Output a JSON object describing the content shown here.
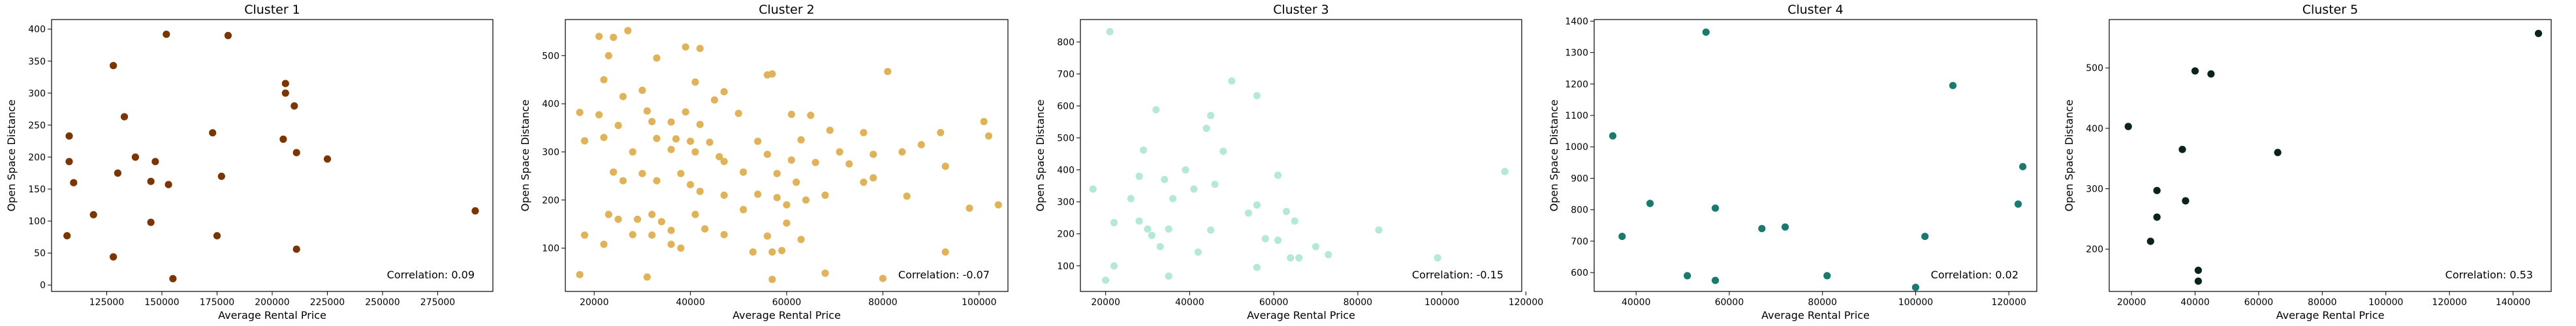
{
  "chart_data": [
    {
      "type": "scatter",
      "title": "Cluster 1",
      "xlabel": "Average Rental Price",
      "ylabel": "Open Space Distance",
      "xlim": [
        100000,
        300000
      ],
      "ylim": [
        -10,
        415
      ],
      "xticks": [
        125000,
        150000,
        175000,
        200000,
        225000,
        250000,
        275000
      ],
      "xtick_labels": [
        "125000",
        "150000",
        "175000",
        "200000",
        "225000",
        "250000",
        "275000"
      ],
      "yticks": [
        0,
        50,
        100,
        150,
        200,
        250,
        300,
        350,
        400
      ],
      "ytick_labels": [
        "0",
        "50",
        "100",
        "150",
        "200",
        "250",
        "300",
        "350",
        "400"
      ],
      "color": "#7a3500",
      "annotation": "Correlation: 0.09",
      "grid": false,
      "points": [
        {
          "x": 152000,
          "y": 392
        },
        {
          "x": 180000,
          "y": 390
        },
        {
          "x": 128000,
          "y": 343
        },
        {
          "x": 206000,
          "y": 315
        },
        {
          "x": 206000,
          "y": 300
        },
        {
          "x": 210000,
          "y": 280
        },
        {
          "x": 133000,
          "y": 263
        },
        {
          "x": 108000,
          "y": 233
        },
        {
          "x": 173000,
          "y": 238
        },
        {
          "x": 205000,
          "y": 228
        },
        {
          "x": 211000,
          "y": 207
        },
        {
          "x": 225000,
          "y": 197
        },
        {
          "x": 108000,
          "y": 193
        },
        {
          "x": 138000,
          "y": 200
        },
        {
          "x": 147000,
          "y": 193
        },
        {
          "x": 130000,
          "y": 175
        },
        {
          "x": 177000,
          "y": 170
        },
        {
          "x": 110000,
          "y": 160
        },
        {
          "x": 145000,
          "y": 162
        },
        {
          "x": 153000,
          "y": 157
        },
        {
          "x": 119000,
          "y": 110
        },
        {
          "x": 145000,
          "y": 98
        },
        {
          "x": 107000,
          "y": 77
        },
        {
          "x": 175000,
          "y": 77
        },
        {
          "x": 211000,
          "y": 56
        },
        {
          "x": 128000,
          "y": 44
        },
        {
          "x": 155000,
          "y": 10
        },
        {
          "x": 292000,
          "y": 116
        }
      ]
    },
    {
      "type": "scatter",
      "title": "Cluster 2",
      "xlabel": "Average Rental Price",
      "ylabel": "Open Space Distance",
      "xlim": [
        14000,
        106000
      ],
      "ylim": [
        10,
        575
      ],
      "xticks": [
        20000,
        40000,
        60000,
        80000,
        100000
      ],
      "xtick_labels": [
        "20000",
        "40000",
        "60000",
        "80000",
        "100000"
      ],
      "yticks": [
        100,
        200,
        300,
        400,
        500
      ],
      "ytick_labels": [
        "100",
        "200",
        "300",
        "400",
        "500"
      ],
      "color": "#e0b35a",
      "annotation": "Correlation: -0.07",
      "grid": false,
      "points": [
        {
          "x": 27000,
          "y": 552
        },
        {
          "x": 21000,
          "y": 540
        },
        {
          "x": 24000,
          "y": 538
        },
        {
          "x": 39000,
          "y": 518
        },
        {
          "x": 42000,
          "y": 515
        },
        {
          "x": 23000,
          "y": 500
        },
        {
          "x": 33000,
          "y": 495
        },
        {
          "x": 81000,
          "y": 467
        },
        {
          "x": 56000,
          "y": 460
        },
        {
          "x": 57000,
          "y": 462
        },
        {
          "x": 22000,
          "y": 450
        },
        {
          "x": 41000,
          "y": 445
        },
        {
          "x": 30000,
          "y": 428
        },
        {
          "x": 47000,
          "y": 425
        },
        {
          "x": 26000,
          "y": 415
        },
        {
          "x": 45000,
          "y": 408
        },
        {
          "x": 17000,
          "y": 382
        },
        {
          "x": 21000,
          "y": 377
        },
        {
          "x": 31000,
          "y": 385
        },
        {
          "x": 39000,
          "y": 383
        },
        {
          "x": 50000,
          "y": 380
        },
        {
          "x": 61000,
          "y": 378
        },
        {
          "x": 65000,
          "y": 376
        },
        {
          "x": 32000,
          "y": 363
        },
        {
          "x": 36000,
          "y": 362
        },
        {
          "x": 42000,
          "y": 357
        },
        {
          "x": 25000,
          "y": 355
        },
        {
          "x": 69000,
          "y": 345
        },
        {
          "x": 76000,
          "y": 340
        },
        {
          "x": 92000,
          "y": 340
        },
        {
          "x": 101000,
          "y": 363
        },
        {
          "x": 102000,
          "y": 333
        },
        {
          "x": 22000,
          "y": 330
        },
        {
          "x": 18000,
          "y": 323
        },
        {
          "x": 33000,
          "y": 328
        },
        {
          "x": 37000,
          "y": 327
        },
        {
          "x": 40000,
          "y": 322
        },
        {
          "x": 44000,
          "y": 320
        },
        {
          "x": 54000,
          "y": 322
        },
        {
          "x": 63000,
          "y": 325
        },
        {
          "x": 88000,
          "y": 315
        },
        {
          "x": 28000,
          "y": 300
        },
        {
          "x": 36000,
          "y": 305
        },
        {
          "x": 41000,
          "y": 300
        },
        {
          "x": 46000,
          "y": 290
        },
        {
          "x": 56000,
          "y": 295
        },
        {
          "x": 71000,
          "y": 300
        },
        {
          "x": 78000,
          "y": 295
        },
        {
          "x": 84000,
          "y": 300
        },
        {
          "x": 47000,
          "y": 280
        },
        {
          "x": 61000,
          "y": 283
        },
        {
          "x": 66000,
          "y": 278
        },
        {
          "x": 73000,
          "y": 275
        },
        {
          "x": 93000,
          "y": 270
        },
        {
          "x": 24000,
          "y": 258
        },
        {
          "x": 30000,
          "y": 255
        },
        {
          "x": 38000,
          "y": 255
        },
        {
          "x": 51000,
          "y": 258
        },
        {
          "x": 58000,
          "y": 255
        },
        {
          "x": 26000,
          "y": 240
        },
        {
          "x": 33000,
          "y": 240
        },
        {
          "x": 40000,
          "y": 232
        },
        {
          "x": 62000,
          "y": 237
        },
        {
          "x": 76000,
          "y": 237
        },
        {
          "x": 78000,
          "y": 246
        },
        {
          "x": 42000,
          "y": 218
        },
        {
          "x": 47000,
          "y": 210
        },
        {
          "x": 54000,
          "y": 212
        },
        {
          "x": 58000,
          "y": 205
        },
        {
          "x": 68000,
          "y": 210
        },
        {
          "x": 85000,
          "y": 208
        },
        {
          "x": 64000,
          "y": 200
        },
        {
          "x": 60000,
          "y": 190
        },
        {
          "x": 104000,
          "y": 190
        },
        {
          "x": 98000,
          "y": 183
        },
        {
          "x": 23000,
          "y": 170
        },
        {
          "x": 32000,
          "y": 170
        },
        {
          "x": 34000,
          "y": 155
        },
        {
          "x": 41000,
          "y": 170
        },
        {
          "x": 51000,
          "y": 180
        },
        {
          "x": 25000,
          "y": 160
        },
        {
          "x": 29000,
          "y": 160
        },
        {
          "x": 60000,
          "y": 152
        },
        {
          "x": 36000,
          "y": 137
        },
        {
          "x": 43000,
          "y": 140
        },
        {
          "x": 18000,
          "y": 127
        },
        {
          "x": 28000,
          "y": 128
        },
        {
          "x": 32000,
          "y": 127
        },
        {
          "x": 47000,
          "y": 128
        },
        {
          "x": 56000,
          "y": 125
        },
        {
          "x": 63000,
          "y": 118
        },
        {
          "x": 22000,
          "y": 108
        },
        {
          "x": 36000,
          "y": 108
        },
        {
          "x": 38000,
          "y": 100
        },
        {
          "x": 59000,
          "y": 95
        },
        {
          "x": 53000,
          "y": 92
        },
        {
          "x": 57000,
          "y": 92
        },
        {
          "x": 93000,
          "y": 92
        },
        {
          "x": 17000,
          "y": 45
        },
        {
          "x": 31000,
          "y": 40
        },
        {
          "x": 57000,
          "y": 35
        },
        {
          "x": 68000,
          "y": 48
        },
        {
          "x": 80000,
          "y": 37
        }
      ]
    },
    {
      "type": "scatter",
      "title": "Cluster 3",
      "xlabel": "Average Rental Price",
      "ylabel": "Open Space Distance",
      "xlim": [
        14000,
        119000
      ],
      "ylim": [
        20,
        870
      ],
      "xticks": [
        20000,
        40000,
        60000,
        80000,
        100000,
        120000
      ],
      "xtick_labels": [
        "20000",
        "40000",
        "60000",
        "80000",
        "100000",
        "120000"
      ],
      "yticks": [
        100,
        200,
        300,
        400,
        500,
        600,
        700,
        800
      ],
      "ytick_labels": [
        "100",
        "200",
        "300",
        "400",
        "500",
        "600",
        "700",
        "800"
      ],
      "color": "#b5e8d8",
      "annotation": "Correlation: -0.15",
      "grid": false,
      "points": [
        {
          "x": 21000,
          "y": 832
        },
        {
          "x": 50000,
          "y": 678
        },
        {
          "x": 56000,
          "y": 632
        },
        {
          "x": 32000,
          "y": 588
        },
        {
          "x": 45000,
          "y": 570
        },
        {
          "x": 44000,
          "y": 530
        },
        {
          "x": 29000,
          "y": 462
        },
        {
          "x": 48000,
          "y": 458
        },
        {
          "x": 39000,
          "y": 400
        },
        {
          "x": 28000,
          "y": 380
        },
        {
          "x": 61000,
          "y": 383
        },
        {
          "x": 34000,
          "y": 370
        },
        {
          "x": 46000,
          "y": 355
        },
        {
          "x": 17000,
          "y": 340
        },
        {
          "x": 41000,
          "y": 340
        },
        {
          "x": 26000,
          "y": 310
        },
        {
          "x": 36000,
          "y": 310
        },
        {
          "x": 56000,
          "y": 290
        },
        {
          "x": 54000,
          "y": 265
        },
        {
          "x": 63000,
          "y": 270
        },
        {
          "x": 28000,
          "y": 240
        },
        {
          "x": 22000,
          "y": 235
        },
        {
          "x": 65000,
          "y": 240
        },
        {
          "x": 30000,
          "y": 215
        },
        {
          "x": 35000,
          "y": 215
        },
        {
          "x": 45000,
          "y": 212
        },
        {
          "x": 85000,
          "y": 212
        },
        {
          "x": 31000,
          "y": 195
        },
        {
          "x": 58000,
          "y": 185
        },
        {
          "x": 61000,
          "y": 180
        },
        {
          "x": 33000,
          "y": 160
        },
        {
          "x": 70000,
          "y": 160
        },
        {
          "x": 42000,
          "y": 143
        },
        {
          "x": 73000,
          "y": 135
        },
        {
          "x": 64000,
          "y": 125
        },
        {
          "x": 66000,
          "y": 125
        },
        {
          "x": 99000,
          "y": 125
        },
        {
          "x": 22000,
          "y": 100
        },
        {
          "x": 56000,
          "y": 95
        },
        {
          "x": 35000,
          "y": 68
        },
        {
          "x": 20000,
          "y": 55
        },
        {
          "x": 115000,
          "y": 395
        }
      ]
    },
    {
      "type": "scatter",
      "title": "Cluster 4",
      "xlabel": "Average Rental Price",
      "ylabel": "Open Space Distance",
      "xlim": [
        31000,
        126000
      ],
      "ylim": [
        540,
        1405
      ],
      "xticks": [
        40000,
        60000,
        80000,
        100000,
        120000
      ],
      "xtick_labels": [
        "40000",
        "60000",
        "80000",
        "100000",
        "120000"
      ],
      "yticks": [
        600,
        700,
        800,
        900,
        1000,
        1100,
        1200,
        1300,
        1400
      ],
      "ytick_labels": [
        "600",
        "700",
        "800",
        "900",
        "1000",
        "1100",
        "1200",
        "1300",
        "1400"
      ],
      "color": "#1a7a6e",
      "annotation": "Correlation: 0.02",
      "grid": false,
      "points": [
        {
          "x": 55000,
          "y": 1365
        },
        {
          "x": 108000,
          "y": 1195
        },
        {
          "x": 35000,
          "y": 1035
        },
        {
          "x": 123000,
          "y": 937
        },
        {
          "x": 43000,
          "y": 820
        },
        {
          "x": 57000,
          "y": 805
        },
        {
          "x": 122000,
          "y": 818
        },
        {
          "x": 67000,
          "y": 740
        },
        {
          "x": 72000,
          "y": 745
        },
        {
          "x": 37000,
          "y": 715
        },
        {
          "x": 102000,
          "y": 715
        },
        {
          "x": 51000,
          "y": 590
        },
        {
          "x": 57000,
          "y": 575
        },
        {
          "x": 81000,
          "y": 590
        },
        {
          "x": 100000,
          "y": 553
        }
      ]
    },
    {
      "type": "scatter",
      "title": "Cluster 5",
      "xlabel": "Average Rental Price",
      "ylabel": "Open Space Distance",
      "xlim": [
        13000,
        152000
      ],
      "ylim": [
        130,
        580
      ],
      "xticks": [
        20000,
        40000,
        60000,
        80000,
        100000,
        120000,
        140000
      ],
      "xtick_labels": [
        "20000",
        "40000",
        "60000",
        "80000",
        "100000",
        "120000",
        "140000"
      ],
      "yticks": [
        200,
        300,
        400,
        500
      ],
      "ytick_labels": [
        "200",
        "300",
        "400",
        "500"
      ],
      "color": "#0a2418",
      "annotation": "Correlation: 0.53",
      "grid": false,
      "points": [
        {
          "x": 148000,
          "y": 557
        },
        {
          "x": 40000,
          "y": 495
        },
        {
          "x": 45000,
          "y": 490
        },
        {
          "x": 19000,
          "y": 403
        },
        {
          "x": 36000,
          "y": 365
        },
        {
          "x": 66000,
          "y": 360
        },
        {
          "x": 28000,
          "y": 297
        },
        {
          "x": 37000,
          "y": 280
        },
        {
          "x": 28000,
          "y": 253
        },
        {
          "x": 26000,
          "y": 213
        },
        {
          "x": 41000,
          "y": 165
        },
        {
          "x": 41000,
          "y": 147
        }
      ]
    }
  ]
}
